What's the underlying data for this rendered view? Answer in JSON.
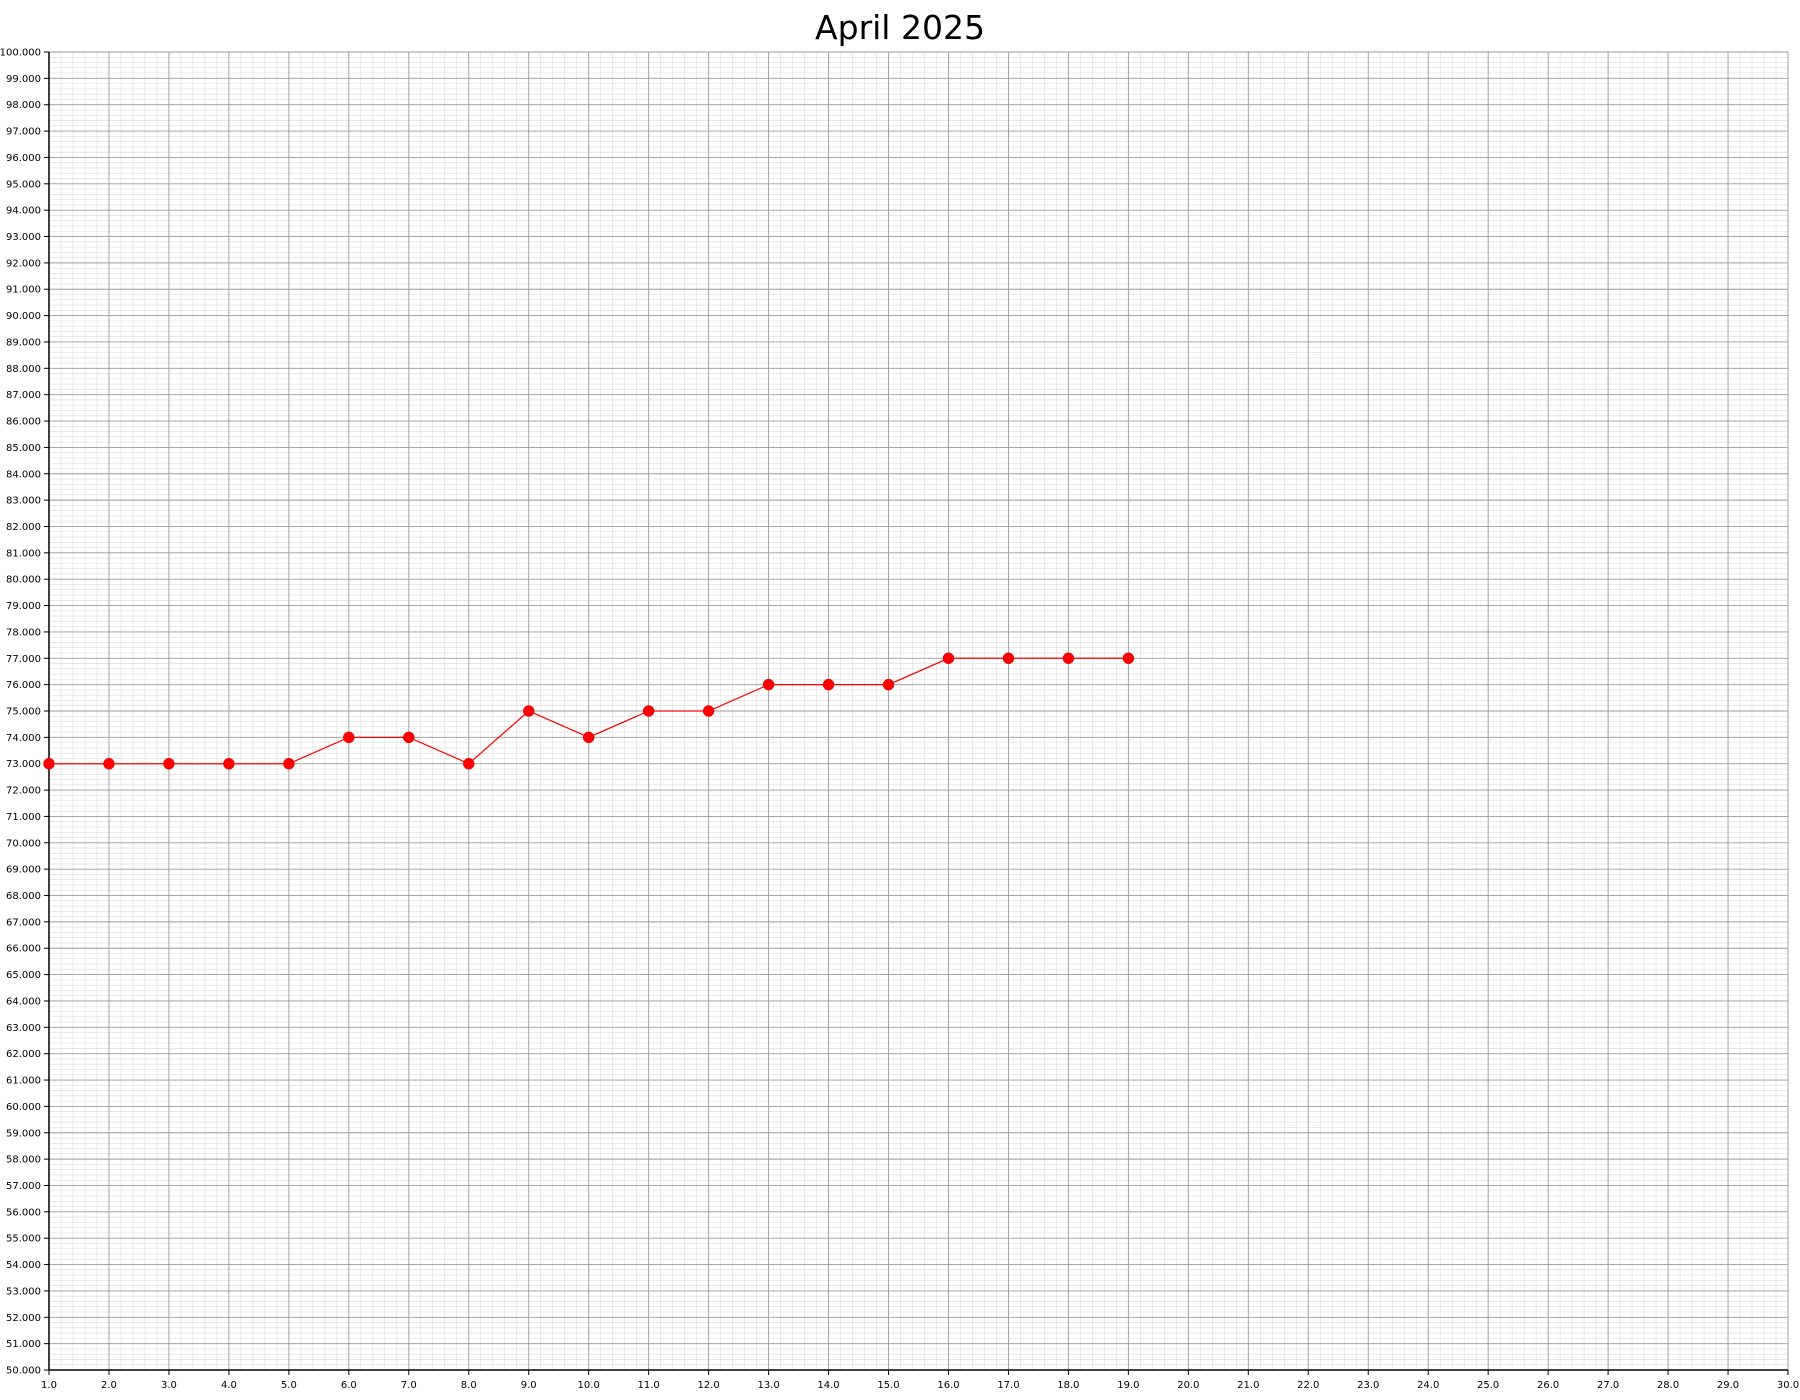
{
  "chart_data": {
    "type": "line",
    "title": "April 2025",
    "xlabel": "",
    "ylabel": "",
    "xlim": [
      1,
      30
    ],
    "ylim": [
      50,
      100
    ],
    "x_tick_step": 1,
    "y_tick_step": 1,
    "x_tick_decimals": 1,
    "y_tick_decimals": 3,
    "grid": true,
    "minor_grid_divisions": 5,
    "series": [
      {
        "color": "#ff0000",
        "marker": "circle",
        "x": [
          1,
          2,
          3,
          4,
          5,
          6,
          7,
          8,
          9,
          10,
          11,
          12,
          13,
          14,
          15,
          16,
          17,
          18,
          19
        ],
        "y": [
          73,
          73,
          73,
          73,
          73,
          74,
          74,
          73,
          75,
          74,
          75,
          75,
          76,
          76,
          76,
          77,
          77,
          77,
          77
        ]
      }
    ],
    "colors": {
      "major_grid": "#9a9a9a",
      "minor_grid": "#dcdcdc",
      "axis": "#000000"
    }
  }
}
